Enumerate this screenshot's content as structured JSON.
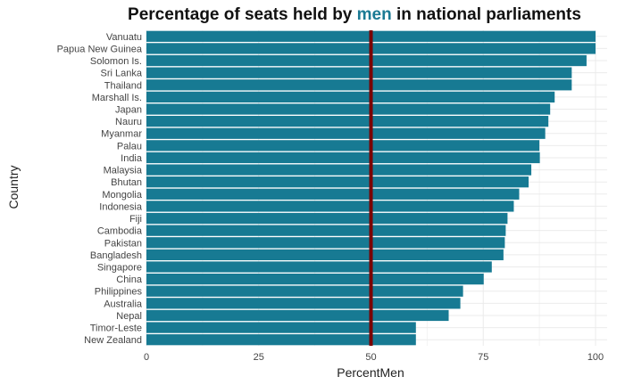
{
  "chart_data": {
    "type": "bar",
    "orientation": "horizontal",
    "title_prefix": "Percentage of seats held by ",
    "title_highlight": "men",
    "title_suffix": " in national parliaments",
    "xlabel": "PercentMen",
    "ylabel": "Country",
    "xlim": [
      0,
      100
    ],
    "xticks": [
      0,
      25,
      50,
      75,
      100
    ],
    "grid": true,
    "legend": "none",
    "colors": {
      "bar": "#177a93",
      "reference_line": "#7a0000",
      "highlight_text": "#1b7a94"
    },
    "reference_line": {
      "x": 50
    },
    "categories": [
      "Vanuatu",
      "Papua New Guinea",
      "Solomon Is.",
      "Sri Lanka",
      "Thailand",
      "Marshall Is.",
      "Japan",
      "Nauru",
      "Myanmar",
      "Palau",
      "India",
      "Malaysia",
      "Bhutan",
      "Mongolia",
      "Indonesia",
      "Fiji",
      "Cambodia",
      "Pakistan",
      "Bangladesh",
      "Singapore",
      "China",
      "Philippines",
      "Australia",
      "Nepal",
      "Timor-Leste",
      "New Zealand"
    ],
    "values": [
      100,
      100,
      98,
      94.7,
      94.7,
      90.9,
      89.9,
      89.5,
      88.8,
      87.5,
      87.6,
      85.7,
      85.1,
      83.0,
      81.8,
      80.4,
      80.0,
      79.8,
      79.5,
      76.9,
      75.1,
      70.5,
      69.9,
      67.3,
      60.0,
      60.0
    ]
  }
}
